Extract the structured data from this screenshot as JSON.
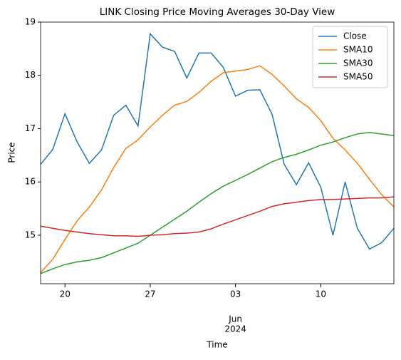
{
  "chart_data": {
    "type": "line",
    "title": "LINK Closing Price Moving Averages 30-Day View",
    "xlabel": "Time",
    "ylabel": "Price",
    "x": [
      "2024-05-18",
      "2024-05-19",
      "2024-05-20",
      "2024-05-21",
      "2024-05-22",
      "2024-05-23",
      "2024-05-24",
      "2024-05-25",
      "2024-05-26",
      "2024-05-27",
      "2024-05-28",
      "2024-05-29",
      "2024-05-30",
      "2024-05-31",
      "2024-06-01",
      "2024-06-02",
      "2024-06-03",
      "2024-06-04",
      "2024-06-05",
      "2024-06-06",
      "2024-06-07",
      "2024-06-08",
      "2024-06-09",
      "2024-06-10",
      "2024-06-11",
      "2024-06-12",
      "2024-06-13",
      "2024-06-14",
      "2024-06-15",
      "2024-06-16"
    ],
    "series": [
      {
        "name": "Close",
        "color": "#1f77b4",
        "values": [
          16.33,
          16.61,
          17.28,
          16.75,
          16.35,
          16.6,
          17.25,
          17.44,
          17.05,
          18.78,
          18.53,
          18.45,
          17.95,
          18.42,
          18.42,
          18.15,
          17.61,
          17.72,
          17.73,
          17.27,
          16.33,
          15.95,
          16.36,
          15.9,
          15.0,
          16.0,
          15.13,
          14.74,
          14.86,
          15.13
        ]
      },
      {
        "name": "SMA10",
        "color": "#ff7f0e",
        "values": [
          14.3,
          14.55,
          14.92,
          15.27,
          15.53,
          15.85,
          16.27,
          16.63,
          16.79,
          17.03,
          17.25,
          17.44,
          17.51,
          17.68,
          17.89,
          18.05,
          18.08,
          18.11,
          18.18,
          18.02,
          17.8,
          17.56,
          17.4,
          17.15,
          16.82,
          16.6,
          16.35,
          16.05,
          15.76,
          15.53
        ]
      },
      {
        "name": "SMA30",
        "color": "#2ca02c",
        "values": [
          14.28,
          14.37,
          14.45,
          14.5,
          14.53,
          14.58,
          14.67,
          14.76,
          14.85,
          15.0,
          15.15,
          15.3,
          15.45,
          15.62,
          15.78,
          15.92,
          16.03,
          16.14,
          16.26,
          16.38,
          16.46,
          16.52,
          16.6,
          16.69,
          16.75,
          16.83,
          16.9,
          16.93,
          16.9,
          16.87
        ]
      },
      {
        "name": "SMA50",
        "color": "#d62728",
        "values": [
          15.17,
          15.13,
          15.09,
          15.06,
          15.03,
          15.01,
          14.99,
          14.99,
          14.98,
          15.0,
          15.01,
          15.03,
          15.04,
          15.06,
          15.12,
          15.21,
          15.29,
          15.37,
          15.45,
          15.54,
          15.59,
          15.62,
          15.65,
          15.67,
          15.67,
          15.68,
          15.69,
          15.7,
          15.7,
          15.72
        ]
      }
    ],
    "xlim": [
      "2024-05-18",
      "2024-06-16"
    ],
    "xticks": [
      {
        "value": "2024-05-20",
        "label": "20"
      },
      {
        "value": "2024-05-27",
        "label": "27"
      },
      {
        "value": "2024-06-03",
        "label": "03"
      },
      {
        "value": "2024-06-10",
        "label": "10"
      }
    ],
    "period_label": {
      "value": "2024-06-03",
      "lines": [
        "Jun",
        "2024"
      ]
    },
    "ylim": [
      14.09,
      19
    ],
    "yticks": [
      15,
      16,
      17,
      18,
      19
    ],
    "grid": false,
    "legend": "upper right"
  }
}
